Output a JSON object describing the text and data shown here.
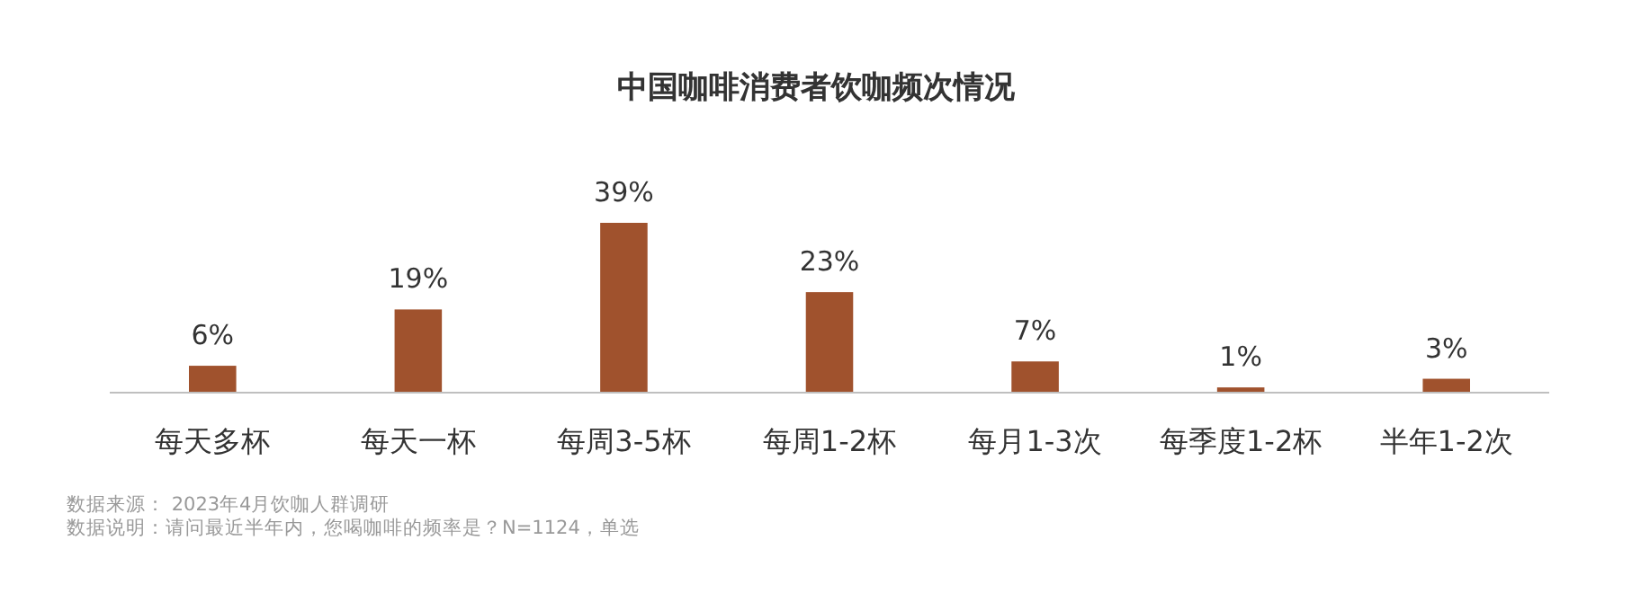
{
  "chart_data": {
    "type": "bar",
    "title": "中国咖啡消费者饮咖频次情况",
    "categories": [
      "每天多杯",
      "每天一杯",
      "每周3-5杯",
      "每周1-2杯",
      "每月1-3次",
      "每季度1-2杯",
      "半年1-2次"
    ],
    "values": [
      6,
      19,
      39,
      23,
      7,
      1,
      3
    ],
    "color": "#a0522d",
    "data_labels": true,
    "value_labels": [
      "6%",
      "19%",
      "39%",
      "23%",
      "7%",
      "1%",
      "3%"
    ],
    "annotations": [
      "数据来源： 2023年4月饮咖人群调研",
      "数据说明：请问最近半年内，您喝咖啡的频率是？N=1124，单选"
    ]
  }
}
